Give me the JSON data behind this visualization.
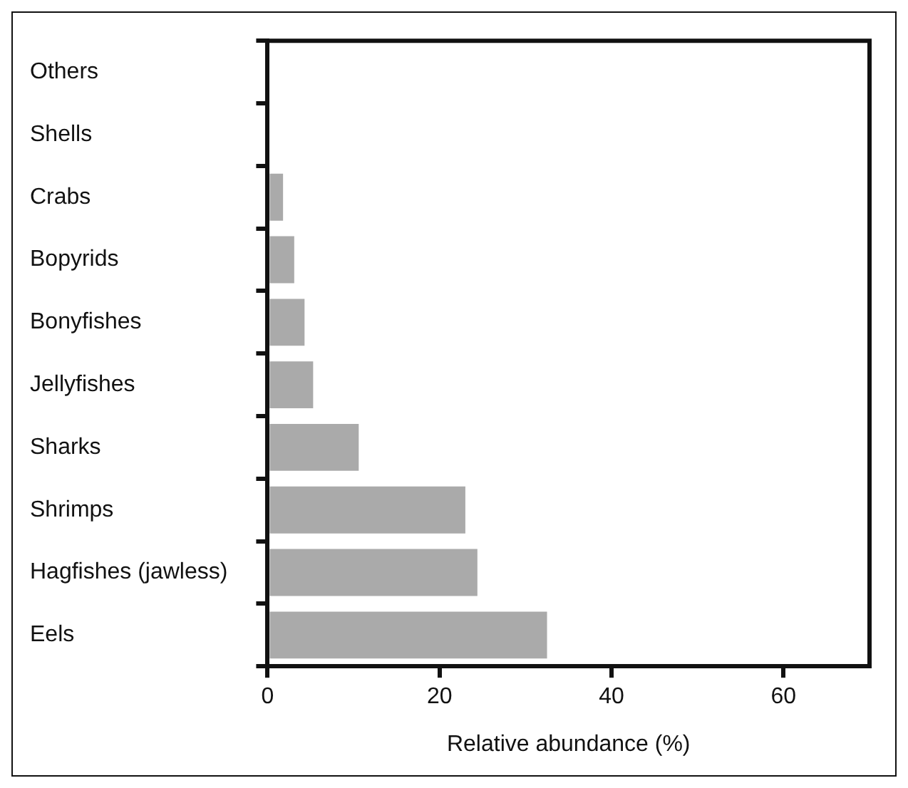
{
  "chart_data": {
    "type": "bar",
    "orientation": "horizontal",
    "xlabel": "Relative abundance (%)",
    "categories": [
      "Others",
      "Shells",
      "Crabs",
      "Bopyrids",
      "Bonyfishes",
      "Jellyfishes",
      "Sharks",
      "Shrimps",
      "Hagfishes (jawless)",
      "Eels"
    ],
    "values": [
      0,
      0,
      1.8,
      3.1,
      4.3,
      5.3,
      10.6,
      23.0,
      24.4,
      32.5
    ],
    "color": "#aaaaaa",
    "xlim": [
      0,
      70
    ],
    "xticks": [
      0,
      20,
      40,
      60
    ],
    "grid": false,
    "legend": false
  }
}
